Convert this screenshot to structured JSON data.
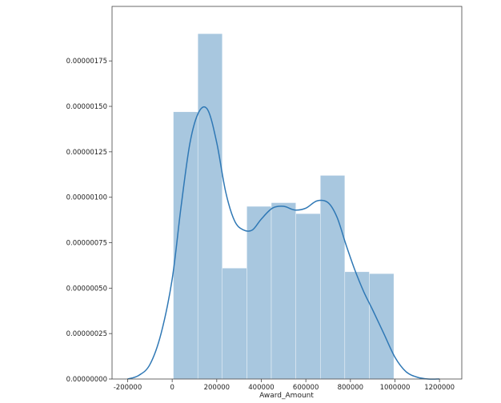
{
  "chart_data": {
    "type": "bar",
    "title": "",
    "xlabel": "Award_Amount",
    "ylabel": "",
    "xlim": [
      -270000,
      1300000
    ],
    "ylim": [
      0,
      2.05e-06
    ],
    "x_ticks": [
      -200000,
      0,
      200000,
      400000,
      600000,
      800000,
      1000000,
      1200000
    ],
    "x_tick_labels": [
      "-200000",
      "0",
      "200000",
      "400000",
      "600000",
      "800000",
      "1000000",
      "1200000"
    ],
    "y_ticks": [
      0,
      2.5e-07,
      5e-07,
      7.5e-07,
      1e-06,
      1.25e-06,
      1.5e-06,
      1.75e-06
    ],
    "y_tick_labels": [
      "0.00000000",
      "0.00000025",
      "0.00000050",
      "0.00000075",
      "0.00000100",
      "0.00000125",
      "0.00000150",
      "0.00000175"
    ],
    "grid": false,
    "histogram": {
      "bin_edges": [
        5000,
        115000,
        225000,
        335000,
        445000,
        555000,
        665000,
        775000,
        885000,
        995000
      ],
      "density": [
        1.47e-06,
        1.9e-06,
        6.1e-07,
        9.5e-07,
        9.7e-07,
        9.1e-07,
        1.12e-06,
        5.9e-07,
        5.8e-07
      ],
      "color": "#a8c7df"
    },
    "kde": {
      "color": "#2f78b5",
      "x": [
        -200000,
        -150000,
        -100000,
        -50000,
        0,
        40000,
        80000,
        120000,
        160000,
        200000,
        240000,
        280000,
        320000,
        360000,
        400000,
        450000,
        500000,
        550000,
        600000,
        650000,
        700000,
        740000,
        780000,
        820000,
        860000,
        900000,
        950000,
        1000000,
        1050000,
        1100000,
        1150000,
        1200000
      ],
      "y": [
        0.0,
        2e-08,
        8e-08,
        2.5e-07,
        5.5e-07,
        9.5e-07,
        1.3e-06,
        1.47e-06,
        1.48e-06,
        1.3e-06,
        1.03e-06,
        8.7e-07,
        8.2e-07,
        8.2e-07,
        8.8e-07,
        9.4e-07,
        9.5e-07,
        9.3e-07,
        9.4e-07,
        9.8e-07,
        9.7e-07,
        8.9e-07,
        7.4e-07,
        6e-07,
        4.8e-07,
        3.8e-07,
        2.5e-07,
        1.2e-07,
        4e-08,
        1e-08,
        0.0,
        0.0
      ]
    }
  }
}
